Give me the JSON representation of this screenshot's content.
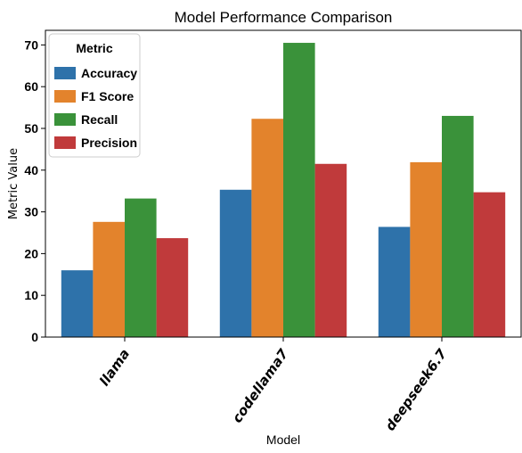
{
  "chart_data": {
    "type": "bar",
    "title": "Model Performance Comparison",
    "xlabel": "Model",
    "ylabel": "Metric Value",
    "categories": [
      "llama",
      "codellama7",
      "deepseek6.7"
    ],
    "series": [
      {
        "name": "Accuracy",
        "color": "#2e72aa",
        "values": [
          16.0,
          35.3,
          26.4
        ]
      },
      {
        "name": "F1 Score",
        "color": "#e3832c",
        "values": [
          27.6,
          52.3,
          41.9
        ]
      },
      {
        "name": "Recall",
        "color": "#3a923a",
        "values": [
          33.2,
          70.5,
          53.0
        ]
      },
      {
        "name": "Precision",
        "color": "#c03a3b",
        "values": [
          23.7,
          41.5,
          34.7
        ]
      }
    ],
    "ylim": [
      0,
      73.5
    ],
    "yticks": [
      0,
      10,
      20,
      30,
      40,
      50,
      60,
      70
    ],
    "legend": {
      "title": "Metric",
      "position": "top-left"
    },
    "grid": false
  }
}
